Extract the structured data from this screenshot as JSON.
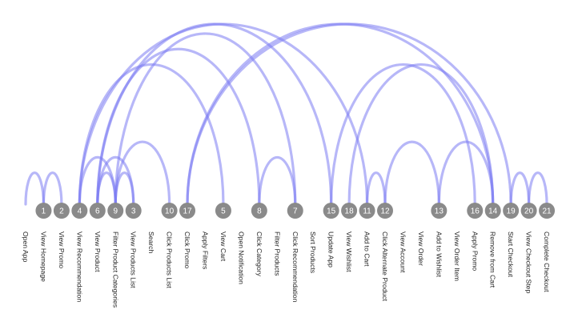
{
  "chart_data": {
    "type": "arc-diagram",
    "positions": [
      {
        "label": "Open App",
        "id": ""
      },
      {
        "label": "View Homepage",
        "id": "1"
      },
      {
        "label": "View Promo",
        "id": "2"
      },
      {
        "label": "View Recommendation",
        "id": "4"
      },
      {
        "label": "View Product",
        "id": "6"
      },
      {
        "label": "Filter Product Categories",
        "id": "9"
      },
      {
        "label": "View Products List",
        "id": "3"
      },
      {
        "label": "Search",
        "id": ""
      },
      {
        "label": "Click Products List",
        "id": "10"
      },
      {
        "label": "Click Promo",
        "id": "17"
      },
      {
        "label": "Apply Filters",
        "id": ""
      },
      {
        "label": "View Cart",
        "id": "5"
      },
      {
        "label": "Open Notification",
        "id": ""
      },
      {
        "label": "Click Category",
        "id": "8"
      },
      {
        "label": "Filter Products",
        "id": ""
      },
      {
        "label": "Click Recommendation",
        "id": "7"
      },
      {
        "label": "Sort Products",
        "id": ""
      },
      {
        "label": "Update App",
        "id": "15"
      },
      {
        "label": "View Wishlist",
        "id": "18"
      },
      {
        "label": "Add to Cart",
        "id": "11"
      },
      {
        "label": "Click Alternate Product",
        "id": "12"
      },
      {
        "label": "View Account",
        "id": ""
      },
      {
        "label": "View Order",
        "id": ""
      },
      {
        "label": "Add to Wishlist",
        "id": "13"
      },
      {
        "label": "View Order Item",
        "id": ""
      },
      {
        "label": "Apply Promo",
        "id": "16"
      },
      {
        "label": "Remove from Cart",
        "id": "14"
      },
      {
        "label": "Start Checkout",
        "id": "19"
      },
      {
        "label": "View Checkout Step",
        "id": "20"
      },
      {
        "label": "Complete Checkout",
        "id": "21"
      }
    ],
    "links": [
      {
        "from": "Open App",
        "to": "View Homepage"
      },
      {
        "from": "View Homepage",
        "to": "View Promo"
      },
      {
        "from": "View Recommendation",
        "to": "Filter Product Categories"
      },
      {
        "from": "View Recommendation",
        "to": "View Cart"
      },
      {
        "from": "View Recommendation",
        "to": "Add to Cart"
      },
      {
        "from": "View Product",
        "to": "Filter Product Categories"
      },
      {
        "from": "View Product",
        "to": "View Products List"
      },
      {
        "from": "View Product",
        "to": "Click Category"
      },
      {
        "from": "View Product",
        "to": "Update App"
      },
      {
        "from": "Filter Product Categories",
        "to": "View Products List"
      },
      {
        "from": "Filter Product Categories",
        "to": "Click Products List"
      },
      {
        "from": "Filter Product Categories",
        "to": "Click Recommendation"
      },
      {
        "from": "Click Promo",
        "to": "Remove from Cart"
      },
      {
        "from": "Click Promo",
        "to": "Start Checkout"
      },
      {
        "from": "Click Category",
        "to": "Click Recommendation"
      },
      {
        "from": "Update App",
        "to": "Apply Promo"
      },
      {
        "from": "View Wishlist",
        "to": "Remove from Cart"
      },
      {
        "from": "Add to Cart",
        "to": "Click Alternate Product"
      },
      {
        "from": "Click Alternate Product",
        "to": "Add to Wishlist"
      },
      {
        "from": "Add to Wishlist",
        "to": "Remove from Cart"
      },
      {
        "from": "Start Checkout",
        "to": "View Checkout Step"
      },
      {
        "from": "View Checkout Step",
        "to": "Complete Checkout"
      }
    ]
  }
}
